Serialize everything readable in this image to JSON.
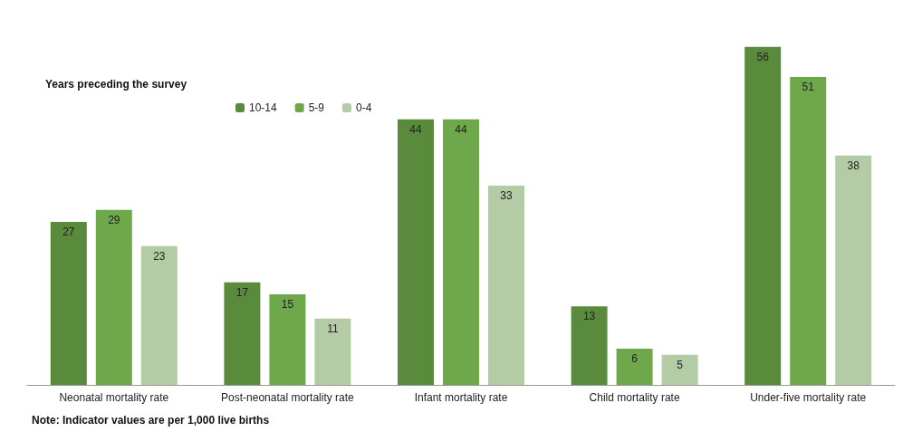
{
  "chart_data": {
    "type": "bar",
    "legend_title": "Years preceding the survey",
    "categories": [
      "Neonatal mortality rate",
      "Post-neonatal mortality rate",
      "Infant mortality rate",
      "Child mortality rate",
      "Under-five mortality rate"
    ],
    "series": [
      {
        "name": "10-14",
        "color": "#5a8a3c",
        "values": [
          27,
          17,
          44,
          13,
          56
        ]
      },
      {
        "name": "5-9",
        "color": "#6fa84a",
        "values": [
          29,
          15,
          44,
          6,
          51
        ]
      },
      {
        "name": "0-4",
        "color": "#b3cca6",
        "values": [
          23,
          11,
          33,
          5,
          38
        ]
      }
    ],
    "data_labels": true,
    "legend": "top left",
    "annotations": [
      "Note: Indicator values are per 1,000 live births"
    ]
  }
}
